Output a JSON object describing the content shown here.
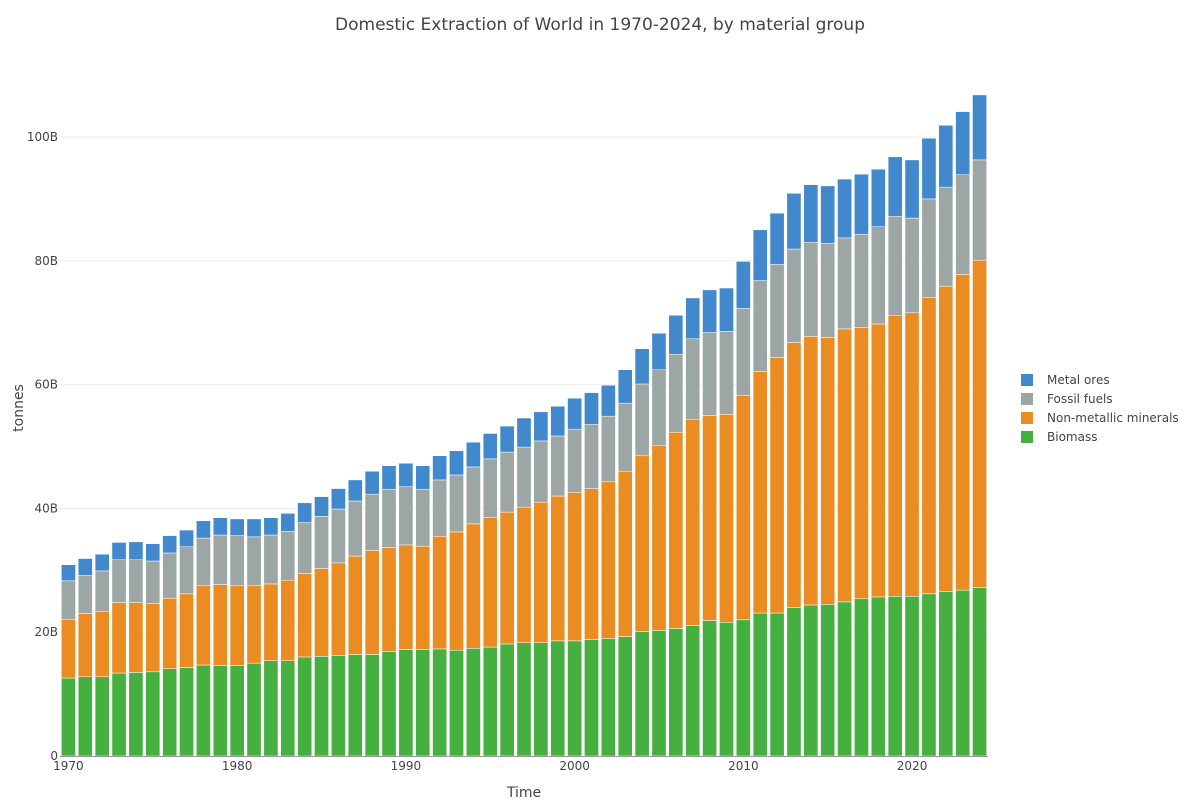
{
  "chart_data": {
    "type": "bar",
    "stacked": true,
    "title": "Domestic Extraction of World in 1970-2024, by material group",
    "xlabel": "Time",
    "ylabel": "tonnes",
    "x_tick_labels": [
      "1970",
      "1980",
      "1990",
      "2000",
      "2010",
      "2020"
    ],
    "x_tick_values": [
      1970,
      1980,
      1990,
      2000,
      2010,
      2020
    ],
    "y_tick_labels": [
      "0",
      "20B",
      "40B",
      "60B",
      "80B",
      "100B"
    ],
    "y_tick_values": [
      0,
      20,
      40,
      60,
      80,
      100
    ],
    "y_unit": "billion tonnes",
    "xlim": [
      1969.5,
      2024.5
    ],
    "ylim": [
      0,
      107
    ],
    "grid": true,
    "legend_position": "right",
    "categories": [
      1970,
      1971,
      1972,
      1973,
      1974,
      1975,
      1976,
      1977,
      1978,
      1979,
      1980,
      1981,
      1982,
      1983,
      1984,
      1985,
      1986,
      1987,
      1988,
      1989,
      1990,
      1991,
      1992,
      1993,
      1994,
      1995,
      1996,
      1997,
      1998,
      1999,
      2000,
      2001,
      2002,
      2003,
      2004,
      2005,
      2006,
      2007,
      2008,
      2009,
      2010,
      2011,
      2012,
      2013,
      2014,
      2015,
      2016,
      2017,
      2018,
      2019,
      2020,
      2021,
      2022,
      2023,
      2024
    ],
    "series": [
      {
        "name": "Biomass",
        "color": "#45b03f",
        "values": [
          12.6,
          12.8,
          12.8,
          13.4,
          13.5,
          13.6,
          14.1,
          14.3,
          14.7,
          14.6,
          14.6,
          15.0,
          15.4,
          15.4,
          16.0,
          16.1,
          16.2,
          16.4,
          16.4,
          16.9,
          17.2,
          17.2,
          17.3,
          17.1,
          17.4,
          17.6,
          18.1,
          18.3,
          18.3,
          18.6,
          18.6,
          18.8,
          19.0,
          19.3,
          20.1,
          20.3,
          20.6,
          21.1,
          21.9,
          21.6,
          22.0,
          23.1,
          23.1,
          24.0,
          24.4,
          24.5,
          24.9,
          25.4,
          25.7,
          25.8,
          25.8,
          26.2,
          26.6,
          26.8,
          27.2
        ]
      },
      {
        "name": "Non-metallic minerals",
        "color": "#ea8c22",
        "values": [
          9.5,
          10.2,
          10.5,
          11.4,
          11.3,
          11.0,
          11.4,
          11.9,
          12.8,
          13.1,
          12.9,
          12.5,
          12.4,
          13.0,
          13.5,
          14.2,
          15.0,
          15.9,
          16.8,
          16.8,
          16.9,
          16.7,
          18.2,
          19.1,
          20.1,
          20.9,
          21.3,
          21.9,
          22.7,
          23.4,
          24.0,
          24.4,
          25.3,
          26.7,
          28.4,
          29.9,
          31.7,
          33.3,
          33.1,
          33.6,
          36.2,
          39.0,
          41.3,
          42.8,
          43.4,
          43.1,
          44.1,
          43.8,
          44.1,
          45.4,
          45.8,
          47.9,
          49.3,
          51.0,
          52.9
        ]
      },
      {
        "name": "Fossil fuels",
        "color": "#9ba6a5",
        "values": [
          6.2,
          6.2,
          6.6,
          6.9,
          6.9,
          6.9,
          7.3,
          7.6,
          7.7,
          8.0,
          8.1,
          7.9,
          7.9,
          7.9,
          8.2,
          8.4,
          8.7,
          8.9,
          9.1,
          9.4,
          9.4,
          9.2,
          9.1,
          9.2,
          9.2,
          9.5,
          9.7,
          9.7,
          9.9,
          9.7,
          10.2,
          10.4,
          10.6,
          11.0,
          11.6,
          12.2,
          12.6,
          13.0,
          13.4,
          13.4,
          14.1,
          14.7,
          15.0,
          15.1,
          15.2,
          15.2,
          14.7,
          15.1,
          15.7,
          16.0,
          15.3,
          15.9,
          16.0,
          16.1,
          16.2
        ]
      },
      {
        "name": "Metal ores",
        "color": "#4189cc",
        "values": [
          2.6,
          2.7,
          2.7,
          2.8,
          2.9,
          2.8,
          2.8,
          2.7,
          2.8,
          2.8,
          2.7,
          2.9,
          2.8,
          2.9,
          3.2,
          3.2,
          3.3,
          3.4,
          3.7,
          3.8,
          3.8,
          3.8,
          3.9,
          3.9,
          4.0,
          4.1,
          4.2,
          4.7,
          4.7,
          4.8,
          5.0,
          5.1,
          5.0,
          5.4,
          5.7,
          5.9,
          6.3,
          6.6,
          6.9,
          7.0,
          7.6,
          8.2,
          8.3,
          9.0,
          9.3,
          9.3,
          9.5,
          9.7,
          9.3,
          9.6,
          9.4,
          9.8,
          10.0,
          10.2,
          10.5
        ]
      }
    ],
    "legend_order": [
      "Metal ores",
      "Fossil fuels",
      "Non-metallic minerals",
      "Biomass"
    ]
  }
}
